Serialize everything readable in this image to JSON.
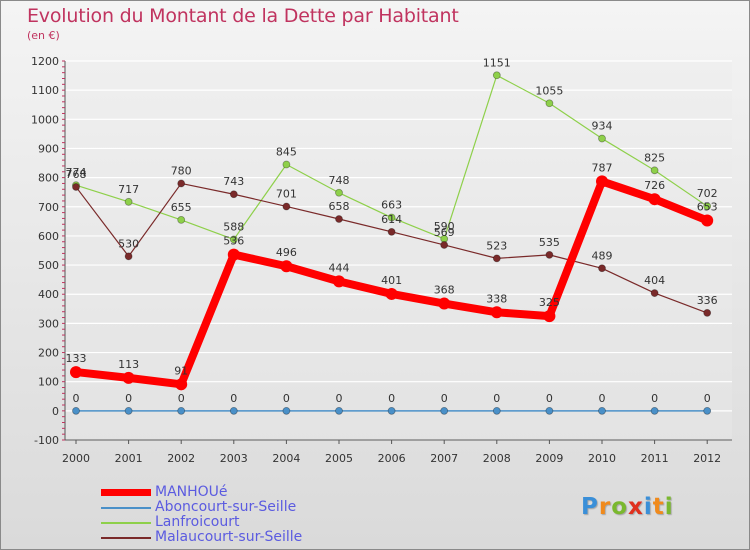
{
  "header": {
    "title": "Evolution du Montant de la Dette par Habitant",
    "subtitle": "(en €)"
  },
  "logo": {
    "letters": [
      "P",
      "r",
      "o",
      "x",
      "i",
      "t",
      "i"
    ]
  },
  "colors": {
    "title": "#c0335f",
    "legend_text": "#5b5be0",
    "grid": "#ffffff",
    "axis": "#555555",
    "axis_tick_marks": "#c0335f",
    "logo_letters": [
      "#3a8fd8",
      "#f08a1c",
      "#7ab82e",
      "#e0301e",
      "#3a8fd8",
      "#f08a1c",
      "#7ab82e"
    ]
  },
  "chart_data": {
    "type": "line",
    "title": "Evolution du Montant de la Dette par Habitant",
    "subtitle": "(en €)",
    "x": [
      "2000",
      "2001",
      "2002",
      "2003",
      "2004",
      "2005",
      "2006",
      "2007",
      "2008",
      "2009",
      "2010",
      "2011",
      "2012"
    ],
    "y_ticks": [
      -100,
      0,
      100,
      200,
      300,
      400,
      500,
      600,
      700,
      800,
      900,
      1000,
      1100,
      1200
    ],
    "ylim": [
      -100,
      1200
    ],
    "grid": "horizontal",
    "legend_position": "bottom-left",
    "series": [
      {
        "name": "MANHOUé",
        "color": "#ff0000",
        "width": 8,
        "marker": 6,
        "values": [
          133,
          113,
          91,
          536,
          496,
          444,
          401,
          368,
          338,
          325,
          787,
          726,
          653
        ],
        "labels": [
          "133",
          "113",
          "91",
          "536",
          "496",
          "444",
          "401",
          "368",
          "338",
          "325",
          "787",
          "726",
          "653"
        ]
      },
      {
        "name": "Aboncourt-sur-Seille",
        "color": "#4a90c8",
        "width": 1.5,
        "marker": 3.5,
        "values": [
          0,
          0,
          0,
          0,
          0,
          0,
          0,
          0,
          0,
          0,
          0,
          0,
          0
        ],
        "labels": [
          "0",
          "0",
          "0",
          "0",
          "0",
          "0",
          "0",
          "0",
          "0",
          "0",
          "0",
          "0",
          "0"
        ]
      },
      {
        "name": "Lanfroicourt",
        "color": "#8ed04a",
        "width": 1.2,
        "marker": 3.5,
        "values": [
          774,
          717,
          655,
          588,
          845,
          748,
          663,
          590,
          1151,
          1055,
          934,
          825,
          702
        ],
        "labels": [
          "774",
          "717",
          "655",
          "588",
          "845",
          "748",
          "663",
          "590",
          "1151",
          "1055",
          "934",
          "825",
          "702"
        ]
      },
      {
        "name": "Malaucourt-sur-Seille",
        "color": "#7a2a2a",
        "width": 1.2,
        "marker": 3.5,
        "values": [
          768,
          530,
          780,
          743,
          701,
          658,
          614,
          569,
          523,
          535,
          489,
          404,
          336
        ],
        "labels": [
          "768",
          "530",
          "780",
          "743",
          "701",
          "658",
          "614",
          "569",
          "523",
          "535",
          "489",
          "404",
          "336"
        ]
      }
    ]
  }
}
